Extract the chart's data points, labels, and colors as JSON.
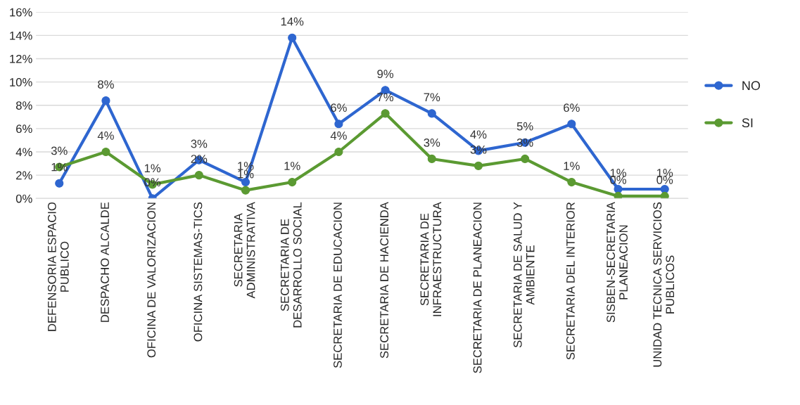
{
  "chart_data": {
    "type": "line",
    "categories": [
      "DEFENSORIA ESPACIO\nPUBLICO",
      "DESPACHO ALCALDE",
      "OFICINA DE VALORIZACION",
      "OFICINA SISTEMAS-TICS",
      "SECRETARIA\nADMINISTRATIVA",
      "SECRETARIA DE\nDESARROLLO SOCIAL",
      "SECRETARIA DE EDUCACION",
      "SECRETARIA DE HACIENDA",
      "SECRETARIA DE\nINFRAESTRUCTURA",
      "SECRETARIA DE PLANEACION",
      "SECRETARIA DE SALUD Y\nAMBIENTE",
      "SECRETARIA DEL INTERIOR",
      "SISBEN-SECRETARIA\nPLANEACION",
      "UNIDAD TECNICA SERVICIOS\nPUBLICOS"
    ],
    "series": [
      {
        "name": "NO",
        "color": "#2e66d0",
        "values": [
          1.3,
          8.4,
          0,
          3.3,
          1.4,
          13.8,
          6.4,
          9.3,
          7.3,
          4.1,
          4.8,
          6.4,
          0.8,
          0.8
        ],
        "value_labels": [
          "1%",
          "8%",
          "0%",
          "3%",
          "1%",
          "14%",
          "6%",
          "9%",
          "7%",
          "4%",
          "5%",
          "6%",
          "1%",
          "1%"
        ]
      },
      {
        "name": "SI",
        "color": "#5b9a32",
        "values": [
          2.7,
          4.0,
          1.2,
          2.0,
          0.7,
          1.4,
          4.0,
          7.3,
          3.4,
          2.8,
          3.4,
          1.4,
          0.2,
          0.2
        ],
        "value_labels": [
          "3%",
          "4%",
          "1%",
          "2%",
          "1%",
          "1%",
          "4%",
          "7%",
          "3%",
          "3%",
          "3%",
          "1%",
          "0%",
          "0%"
        ]
      }
    ],
    "ylim": [
      0,
      16
    ],
    "yticks": [
      {
        "value": 0,
        "label": "0%"
      },
      {
        "value": 2,
        "label": "2%"
      },
      {
        "value": 4,
        "label": "4%"
      },
      {
        "value": 6,
        "label": "6%"
      },
      {
        "value": 8,
        "label": "8%"
      },
      {
        "value": 10,
        "label": "10%"
      },
      {
        "value": 12,
        "label": "12%"
      },
      {
        "value": 14,
        "label": "14%"
      },
      {
        "value": 16,
        "label": "16%"
      }
    ],
    "grid": "y",
    "legend": "right",
    "marker": "circle",
    "line_style": "solid"
  }
}
